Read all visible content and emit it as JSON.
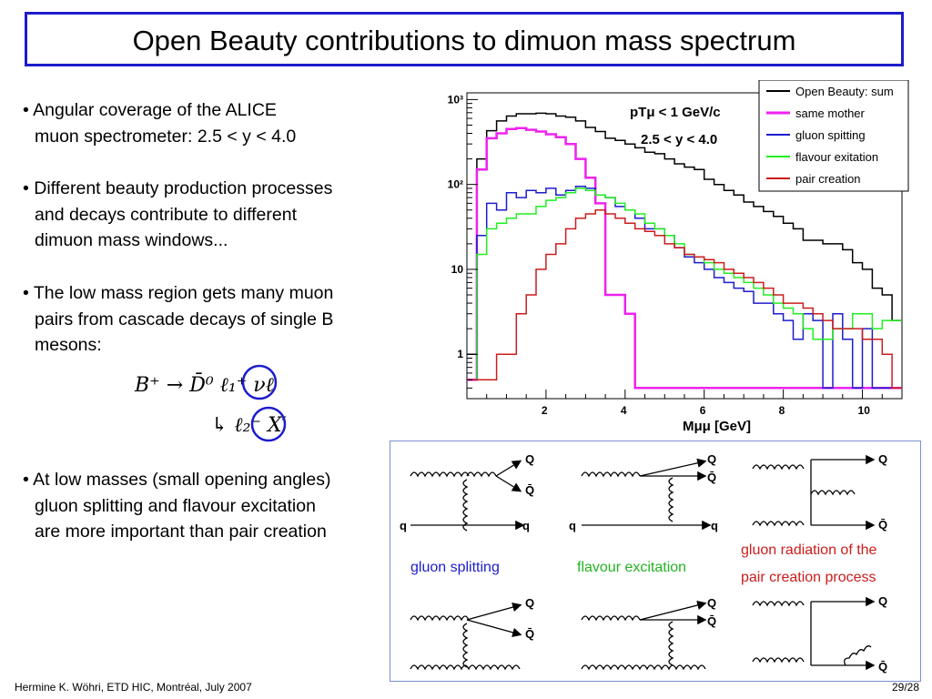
{
  "slide": {
    "title": "Open Beauty contributions to dimuon mass spectrum",
    "footer_left": "Hermine K. Wöhri, ETD HIC, Montréal, July 2007",
    "footer_right": "29/28"
  },
  "bullets": [
    {
      "lines": [
        "• Angular coverage of the ALICE",
        "muon spectrometer: 2.5 < y < 4.0"
      ]
    },
    {
      "lines": [
        "• Different beauty production processes",
        "and decays contribute to different",
        "dimuon mass windows..."
      ]
    },
    {
      "lines": [
        "• The low mass region gets many muon",
        "pairs from cascade decays of single B",
        "mesons:"
      ]
    },
    {
      "lines": [
        "• At low masses (small opening angles)",
        "gluon splitting and flavour excitation",
        "are more important than pair creation"
      ]
    }
  ],
  "formula": {
    "line1": "B⁺ → D̄⁰ ℓ₁⁺ νℓ",
    "line2": "↳ ℓ₂⁻ X′"
  },
  "diagrams": {
    "gluon_splitting": "gluon splitting",
    "flavour_excitation": "flavour excitation",
    "gluon_radiation_1": "gluon radiation of the",
    "gluon_radiation_2": "pair creation process",
    "labels": {
      "Q": "Q",
      "Qbar": "Q̄",
      "q": "q"
    },
    "colors": {
      "blue": "#1c1ccc",
      "green": "#22b422",
      "red": "#cc1c1c"
    }
  },
  "chart_data": {
    "type": "line",
    "style": "step-histogram",
    "title": "",
    "xlabel": "Mμμ [GeV]",
    "ylabel": "",
    "xlim": [
      0,
      11
    ],
    "ylim": [
      0.3,
      1200
    ],
    "y_scale": "log",
    "x_ticks": [
      2,
      4,
      6,
      8,
      10
    ],
    "y_ticks": [
      {
        "value": 1,
        "label": "1"
      },
      {
        "value": 10,
        "label": "10"
      },
      {
        "value": 100,
        "label": "10²"
      },
      {
        "value": 1000,
        "label": "10³"
      }
    ],
    "annotations": [
      "pTμ < 1 GeV/c",
      "2.5 < y < 4.0"
    ],
    "legend_position": "top-right",
    "bin_edges": [
      0.0,
      0.25,
      0.5,
      0.75,
      1.0,
      1.25,
      1.5,
      1.75,
      2.0,
      2.25,
      2.5,
      2.75,
      3.0,
      3.25,
      3.5,
      3.75,
      4.0,
      4.25,
      4.5,
      4.75,
      5.0,
      5.25,
      5.5,
      5.75,
      6.0,
      6.25,
      6.5,
      6.75,
      7.0,
      7.25,
      7.5,
      7.75,
      8.0,
      8.25,
      8.5,
      8.75,
      9.0,
      9.25,
      9.5,
      9.75,
      10.0,
      10.25,
      10.5,
      10.75,
      11.0
    ],
    "series": [
      {
        "name": "Open Beauty: sum",
        "color": "#000000",
        "values": [
          1,
          200,
          430,
          560,
          640,
          680,
          680,
          690,
          680,
          640,
          620,
          560,
          470,
          420,
          350,
          330,
          300,
          270,
          240,
          230,
          200,
          175,
          160,
          150,
          115,
          100,
          85,
          75,
          62,
          55,
          48,
          42,
          35,
          30,
          22,
          22,
          20,
          20,
          17,
          12,
          10,
          6,
          5,
          2.5
        ]
      },
      {
        "name": "same mother",
        "color": "#ee22ee",
        "values": [
          0.5,
          150,
          350,
          400,
          450,
          460,
          440,
          420,
          390,
          360,
          300,
          200,
          120,
          60,
          5,
          5,
          3,
          0.4,
          0.4,
          0.4,
          0.4,
          0.4,
          0.4,
          0.4,
          0.4,
          0.4,
          0.4,
          0.4,
          0.4,
          0.4,
          0.4,
          0.4,
          0.4,
          0.4,
          0.4,
          0.4,
          0.4,
          0.4,
          0.4,
          0.4,
          0.4,
          0.4,
          0.4,
          0.4
        ]
      },
      {
        "name": "gluon spitting",
        "color": "#1c1ccc",
        "values": [
          0.5,
          25,
          60,
          50,
          80,
          70,
          85,
          80,
          90,
          75,
          85,
          95,
          90,
          75,
          70,
          55,
          50,
          40,
          30,
          30,
          25,
          18,
          14,
          12,
          10,
          8,
          7,
          6,
          5.5,
          4,
          4,
          3,
          2.5,
          1.5,
          3,
          2.5,
          0.4,
          3,
          1.5,
          0.4,
          2,
          0.4,
          0.4,
          0.4
        ]
      },
      {
        "name": "flavour exitation",
        "color": "#22ee22",
        "values": [
          0.5,
          15,
          30,
          35,
          40,
          45,
          45,
          55,
          65,
          70,
          80,
          90,
          85,
          75,
          70,
          60,
          50,
          45,
          35,
          30,
          25,
          20,
          15,
          14,
          12,
          10,
          9,
          8,
          7,
          6,
          5,
          4,
          3.5,
          3,
          2,
          1.5,
          1.5,
          2,
          2,
          3,
          3,
          2,
          2.5,
          2.5
        ]
      },
      {
        "name": "pair creation",
        "color": "#cc1c1c",
        "values": [
          0.5,
          0.5,
          0.5,
          1,
          1,
          3,
          5,
          10,
          15,
          20,
          30,
          40,
          45,
          50,
          45,
          40,
          35,
          30,
          28,
          25,
          20,
          18,
          15,
          14,
          13,
          12,
          10,
          9,
          8,
          7,
          6,
          5,
          4,
          4,
          3.5,
          3,
          2.5,
          2,
          2,
          2,
          1.5,
          1.5,
          1,
          0.4
        ]
      }
    ]
  }
}
